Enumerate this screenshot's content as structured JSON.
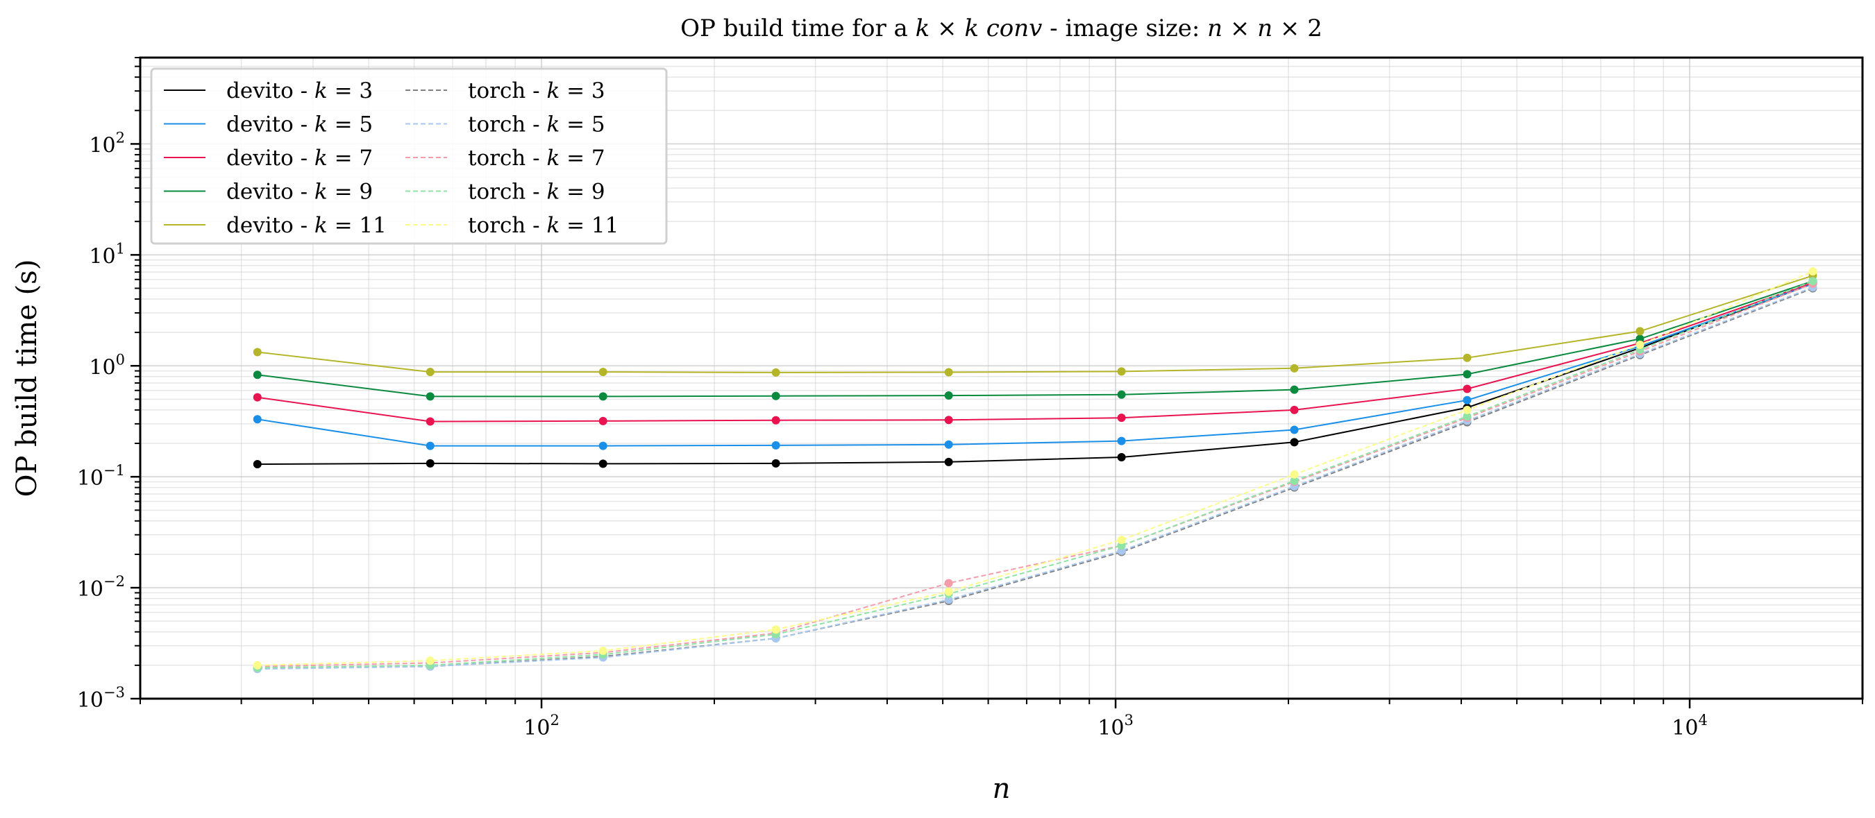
{
  "chart_data": {
    "type": "line",
    "title_parts": [
      {
        "text": "OP build time for a ",
        "math": false
      },
      {
        "text": "k",
        "math": true
      },
      {
        "text": " × ",
        "math": false
      },
      {
        "text": "k conv",
        "math": true
      },
      {
        "text": " - image size: ",
        "math": false
      },
      {
        "text": "n",
        "math": true
      },
      {
        "text": " × ",
        "math": false
      },
      {
        "text": "n",
        "math": true
      },
      {
        "text": " × 2",
        "math": false
      }
    ],
    "xlabel": "n",
    "ylabel": "OP build time (s)",
    "x_scale": "log",
    "y_scale": "log",
    "xlim": [
      20,
      20000
    ],
    "ylim": [
      0.001,
      600
    ],
    "x_ticks": [
      {
        "value": 100,
        "base": "10",
        "exp": "2"
      },
      {
        "value": 1000,
        "base": "10",
        "exp": "3"
      },
      {
        "value": 10000,
        "base": "10",
        "exp": "4"
      }
    ],
    "y_ticks": [
      {
        "value": 0.001,
        "base": "10",
        "exp": "−3"
      },
      {
        "value": 0.01,
        "base": "10",
        "exp": "−2"
      },
      {
        "value": 0.1,
        "base": "10",
        "exp": "−1"
      },
      {
        "value": 1,
        "base": "10",
        "exp": "0"
      },
      {
        "value": 10,
        "base": "10",
        "exp": "1"
      },
      {
        "value": 100,
        "base": "10",
        "exp": "2"
      }
    ],
    "grid": true,
    "legend_position": "top-left",
    "legend_columns": 2,
    "x": [
      32,
      64,
      128,
      256,
      512,
      1024,
      2048,
      4096,
      8192,
      16384
    ],
    "series": [
      {
        "name": "devito - ",
        "k": "3",
        "color": "#000000",
        "dash": "solid",
        "values": [
          0.13,
          0.132,
          0.131,
          0.132,
          0.136,
          0.15,
          0.205,
          0.42,
          1.45,
          5.5
        ]
      },
      {
        "name": "devito - ",
        "k": "5",
        "color": "#1a8fe8",
        "dash": "solid",
        "values": [
          0.33,
          0.19,
          0.19,
          0.192,
          0.195,
          0.21,
          0.265,
          0.49,
          1.5,
          5.5
        ]
      },
      {
        "name": "devito - ",
        "k": "7",
        "color": "#e8134f",
        "dash": "solid",
        "values": [
          0.52,
          0.315,
          0.318,
          0.323,
          0.325,
          0.34,
          0.4,
          0.62,
          1.6,
          5.6
        ]
      },
      {
        "name": "devito - ",
        "k": "9",
        "color": "#0a8a3e",
        "dash": "solid",
        "values": [
          0.83,
          0.53,
          0.53,
          0.535,
          0.54,
          0.55,
          0.61,
          0.84,
          1.75,
          5.8
        ]
      },
      {
        "name": "devito - ",
        "k": "11",
        "color": "#b5b52a",
        "dash": "solid",
        "values": [
          1.33,
          0.88,
          0.88,
          0.87,
          0.875,
          0.89,
          0.95,
          1.18,
          2.05,
          6.5
        ]
      },
      {
        "name": "torch - ",
        "k": "3",
        "color": "#808080",
        "dash": "dashed",
        "values": [
          0.00188,
          0.00195,
          0.0024,
          0.0035,
          0.0076,
          0.021,
          0.08,
          0.31,
          1.25,
          5.0
        ]
      },
      {
        "name": "torch - ",
        "k": "5",
        "color": "#a8c8f0",
        "dash": "dashed",
        "values": [
          0.00185,
          0.00195,
          0.00235,
          0.0035,
          0.0078,
          0.0215,
          0.082,
          0.32,
          1.28,
          5.1
        ]
      },
      {
        "name": "torch - ",
        "k": "7",
        "color": "#f59cab",
        "dash": "dashed",
        "values": [
          0.00195,
          0.0021,
          0.0026,
          0.0039,
          0.011,
          0.024,
          0.09,
          0.34,
          1.35,
          5.5
        ]
      },
      {
        "name": "torch - ",
        "k": "9",
        "color": "#8fe3a5",
        "dash": "dashed",
        "values": [
          0.0019,
          0.002,
          0.0025,
          0.0038,
          0.0088,
          0.024,
          0.092,
          0.35,
          1.4,
          5.8
        ]
      },
      {
        "name": "torch - ",
        "k": "11",
        "color": "#fbfb8a",
        "dash": "dashed",
        "values": [
          0.002,
          0.0022,
          0.0027,
          0.0042,
          0.0092,
          0.027,
          0.105,
          0.4,
          1.55,
          7.1
        ]
      }
    ]
  }
}
